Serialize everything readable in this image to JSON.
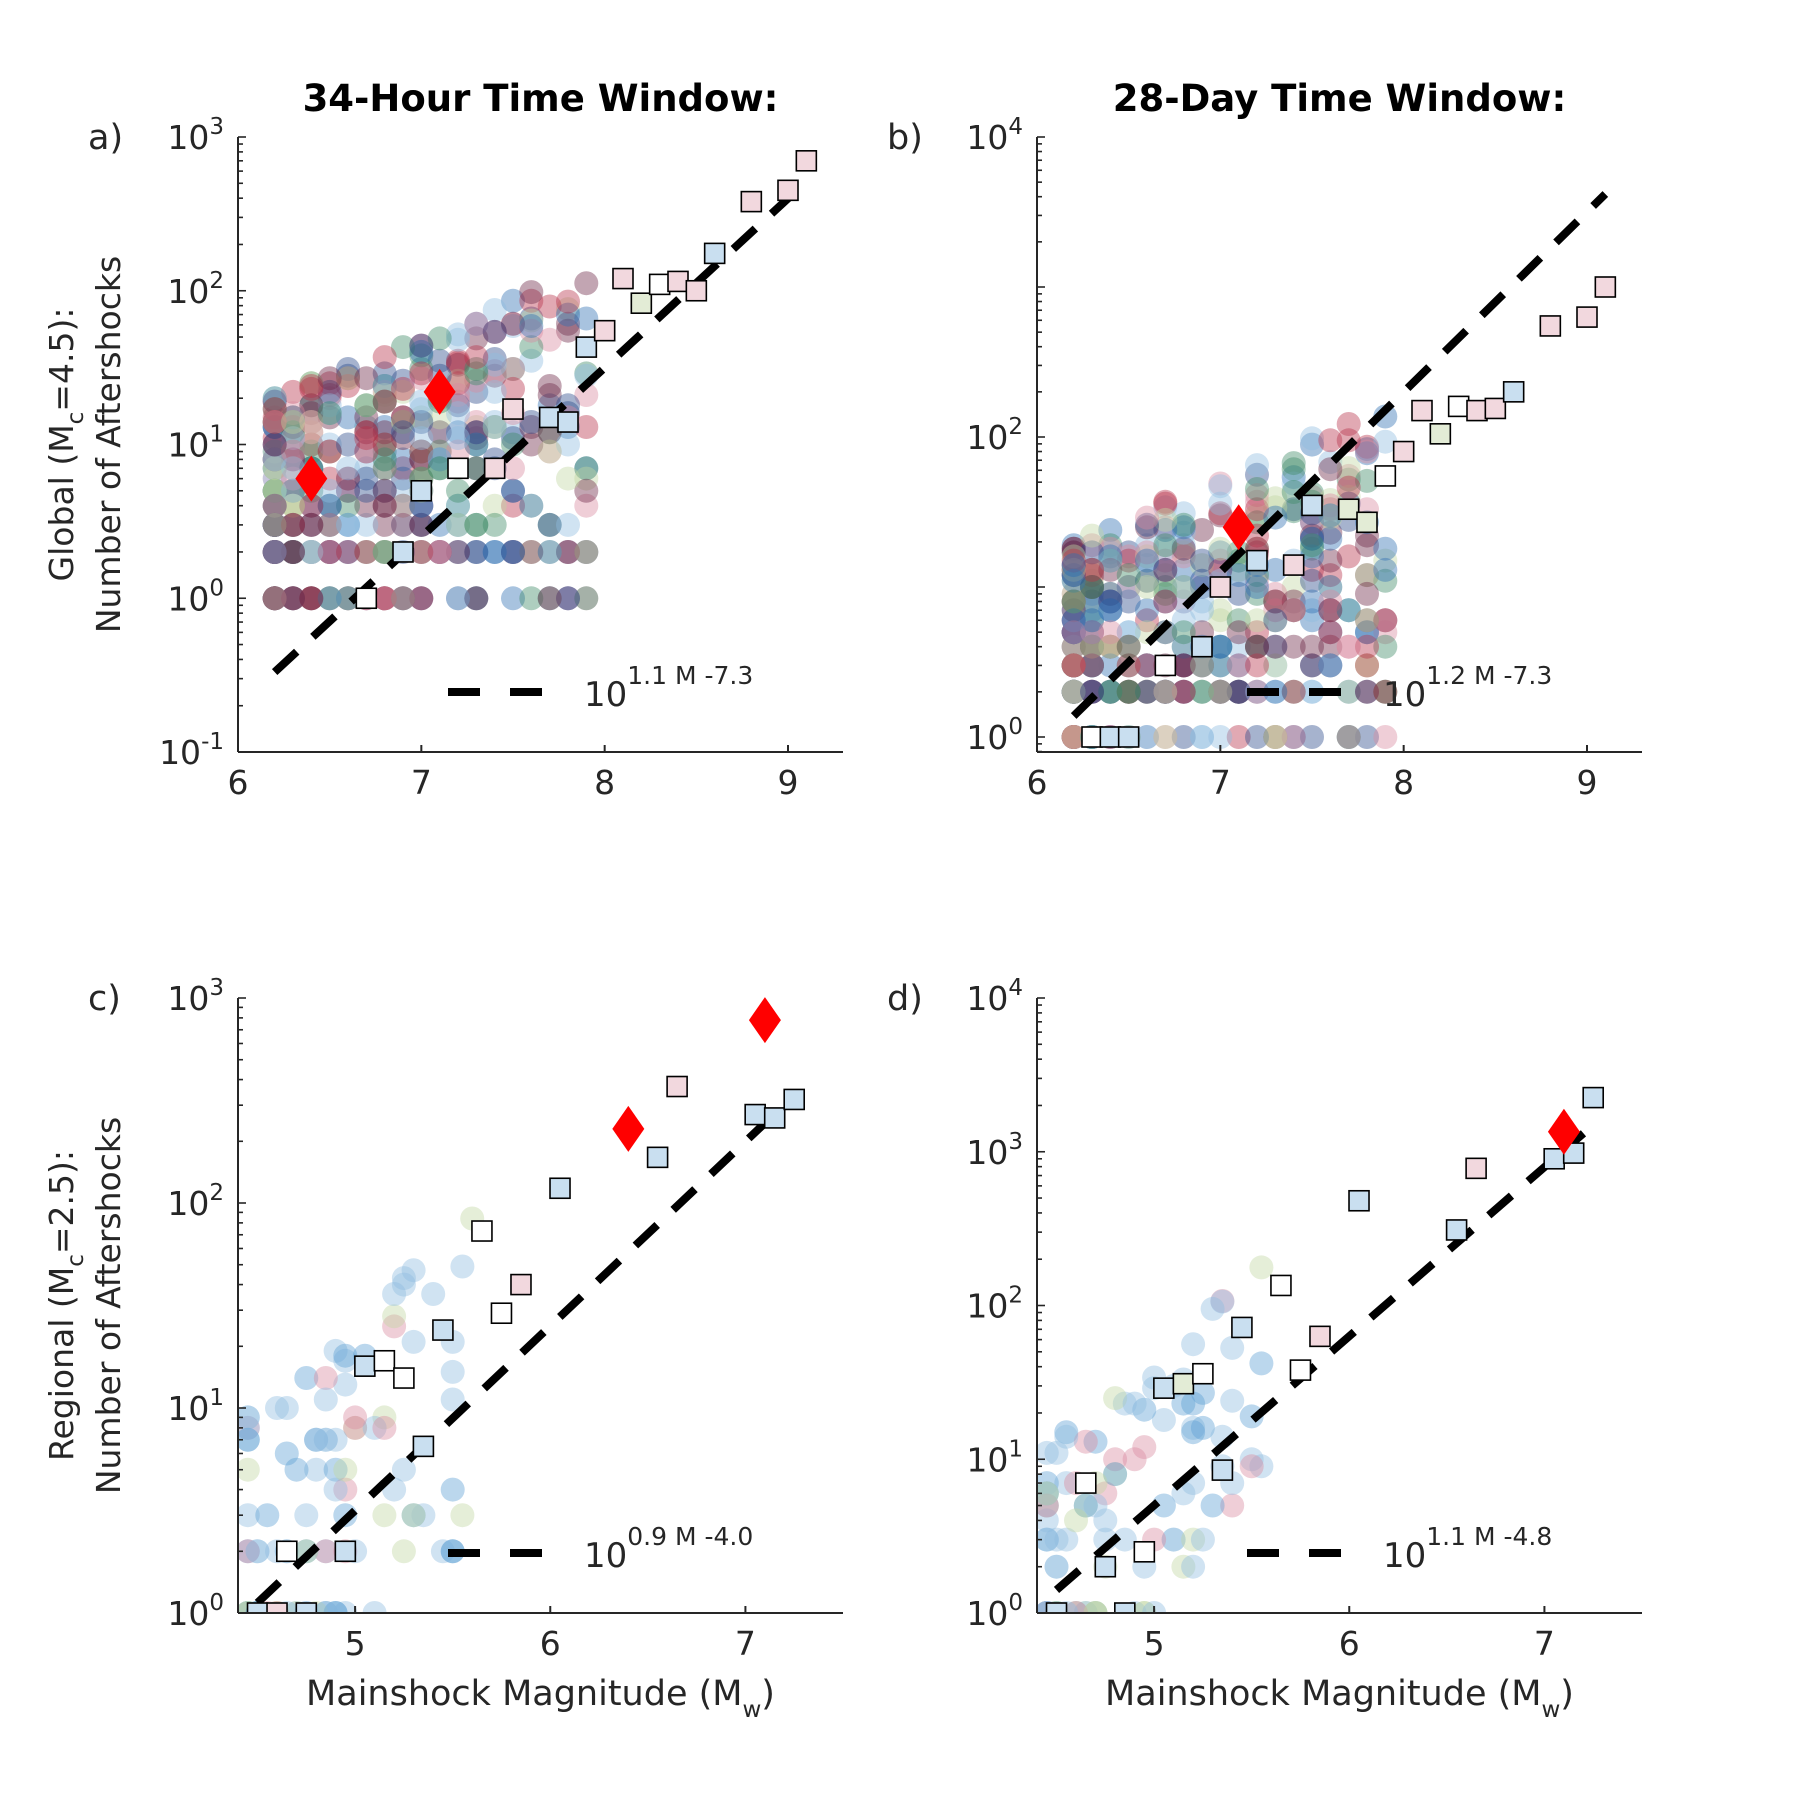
{
  "chart_data": [
    {
      "id": "a",
      "type": "scatter",
      "panel_label": "a)",
      "title": "34-Hour Time Window:",
      "ylabel_line1": "Global (M",
      "ylabel_sub": "c",
      "ylabel_rest": "=4.5):",
      "ylabel_line2": "Number of Aftershocks",
      "xlabel": "",
      "xlim": [
        6,
        9.3
      ],
      "ylim_exp": [
        -1,
        3
      ],
      "y_scale": "log",
      "xticks": [
        6,
        7,
        8,
        9
      ],
      "yticks_exp": [
        -1,
        0,
        1,
        2,
        3
      ],
      "fit": {
        "slope": 1.1,
        "intercept": -7.3,
        "x_range": [
          6.2,
          9.1
        ]
      },
      "legend": {
        "base": "10",
        "exponent": "1.1 M -7.3",
        "position": "lower-right"
      },
      "mainshocks_red": [
        [
          6.4,
          6
        ],
        [
          7.1,
          22
        ]
      ],
      "squares": [
        [
          6.7,
          1,
          "#ffffff"
        ],
        [
          6.9,
          2,
          "#c9dff0"
        ],
        [
          7.0,
          5,
          "#c9dff0"
        ],
        [
          7.2,
          7,
          "#ffffff"
        ],
        [
          7.4,
          7,
          "#f2d8de"
        ],
        [
          7.5,
          17,
          "#f2d8de"
        ],
        [
          7.7,
          15,
          "#c9dff0"
        ],
        [
          7.8,
          14,
          "#c9dff0"
        ],
        [
          7.9,
          43,
          "#c9dff0"
        ],
        [
          8.0,
          55,
          "#f2d8de"
        ],
        [
          8.1,
          120,
          "#f2d8de"
        ],
        [
          8.2,
          83,
          "#e3ecd6"
        ],
        [
          8.3,
          110,
          "#ffffff"
        ],
        [
          8.4,
          115,
          "#f2d8de"
        ],
        [
          8.5,
          100,
          "#f2d8de"
        ],
        [
          8.6,
          175,
          "#c9dff0"
        ],
        [
          8.8,
          380,
          "#f2d8de"
        ],
        [
          9.0,
          450,
          "#f2d8de"
        ],
        [
          9.1,
          700,
          "#f2d8de"
        ]
      ]
    },
    {
      "id": "b",
      "type": "scatter",
      "panel_label": "b)",
      "title": "28-Day Time Window:",
      "ylabel_line1": "",
      "ylabel_sub": "",
      "ylabel_rest": "",
      "ylabel_line2": "",
      "xlabel": "",
      "xlim": [
        6,
        9.3
      ],
      "ylim_exp": [
        -0.1,
        4
      ],
      "y_scale": "log",
      "xticks": [
        6,
        7,
        8,
        9
      ],
      "yticks_exp": [
        0,
        2,
        4
      ],
      "fit": {
        "slope": 1.2,
        "intercept": -7.3,
        "x_range": [
          6.2,
          9.1
        ]
      },
      "legend": {
        "base": "10",
        "exponent": "1.2 M -7.3",
        "position": "lower-right"
      },
      "mainshocks_red": [
        [
          7.1,
          25
        ]
      ],
      "squares": [
        [
          6.3,
          1,
          "#ffffff"
        ],
        [
          6.4,
          1,
          "#c9dff0"
        ],
        [
          6.5,
          1,
          "#c9dff0"
        ],
        [
          6.7,
          3,
          "#ffffff"
        ],
        [
          6.9,
          4,
          "#c9dff0"
        ],
        [
          7.0,
          10,
          "#f2d8de"
        ],
        [
          7.2,
          15,
          "#c9dff0"
        ],
        [
          7.4,
          14,
          "#f2d8de"
        ],
        [
          7.5,
          35,
          "#c9dff0"
        ],
        [
          7.7,
          33,
          "#e3ecd6"
        ],
        [
          7.8,
          27,
          "#e3ecd6"
        ],
        [
          7.9,
          55,
          "#ffffff"
        ],
        [
          8.0,
          80,
          "#f2d8de"
        ],
        [
          8.1,
          150,
          "#f2d8de"
        ],
        [
          8.2,
          105,
          "#e3ecd6"
        ],
        [
          8.3,
          160,
          "#ffffff"
        ],
        [
          8.4,
          150,
          "#f2d8de"
        ],
        [
          8.5,
          155,
          "#f2d8de"
        ],
        [
          8.6,
          200,
          "#c9dff0"
        ],
        [
          8.8,
          550,
          "#f2d8de"
        ],
        [
          9.0,
          630,
          "#f2d8de"
        ],
        [
          9.1,
          1000,
          "#f2d8de"
        ]
      ]
    },
    {
      "id": "c",
      "type": "scatter",
      "panel_label": "c)",
      "title": "",
      "ylabel_line1": "Regional (M",
      "ylabel_sub": "c",
      "ylabel_rest": "=2.5):",
      "ylabel_line2": "Number of Aftershocks",
      "xlabel": "Mainshock Magnitude (M",
      "xlabel_sub": "w",
      "xlabel_end": ")",
      "xlim": [
        4.4,
        7.5
      ],
      "ylim_exp": [
        0,
        3
      ],
      "y_scale": "log",
      "xticks": [
        5,
        6,
        7
      ],
      "yticks_exp": [
        0,
        1,
        2,
        3
      ],
      "fit": {
        "slope": 0.9,
        "intercept": -4.0,
        "x_range": [
          4.5,
          7.2
        ]
      },
      "legend": {
        "base": "10",
        "exponent": "0.9 M -4.0",
        "position": "lower-right"
      },
      "mainshocks_red": [
        [
          6.4,
          230
        ],
        [
          7.1,
          780
        ]
      ],
      "squares": [
        [
          4.5,
          1,
          "#c9dff0"
        ],
        [
          4.6,
          1,
          "#f2d8de"
        ],
        [
          4.65,
          2,
          "#ffffff"
        ],
        [
          4.75,
          1,
          "#c9dff0"
        ],
        [
          4.95,
          2,
          "#c9dff0"
        ],
        [
          5.05,
          16,
          "#c9dff0"
        ],
        [
          5.15,
          17,
          "#ffffff"
        ],
        [
          5.25,
          14,
          "#ffffff"
        ],
        [
          5.35,
          6.5,
          "#c9dff0"
        ],
        [
          5.45,
          24,
          "#c9dff0"
        ],
        [
          5.65,
          73,
          "#ffffff"
        ],
        [
          5.75,
          29,
          "#ffffff"
        ],
        [
          5.85,
          40,
          "#f2d8de"
        ],
        [
          6.05,
          118,
          "#c9dff0"
        ],
        [
          6.55,
          167,
          "#c9dff0"
        ],
        [
          6.65,
          370,
          "#f2d8de"
        ],
        [
          7.05,
          270,
          "#c9dff0"
        ],
        [
          7.15,
          260,
          "#c9dff0"
        ],
        [
          7.25,
          320,
          "#c9dff0"
        ]
      ]
    },
    {
      "id": "d",
      "type": "scatter",
      "panel_label": "d)",
      "title": "",
      "ylabel_line1": "",
      "ylabel_sub": "",
      "ylabel_rest": "",
      "ylabel_line2": "",
      "xlabel": "Mainshock Magnitude (M",
      "xlabel_sub": "w",
      "xlabel_end": ")",
      "xlim": [
        4.4,
        7.5
      ],
      "ylim_exp": [
        0,
        4
      ],
      "y_scale": "log",
      "xticks": [
        5,
        6,
        7
      ],
      "yticks_exp": [
        0,
        1,
        2,
        3,
        4
      ],
      "fit": {
        "slope": 1.1,
        "intercept": -4.8,
        "x_range": [
          4.5,
          7.2
        ]
      },
      "legend": {
        "base": "10",
        "exponent": "1.1 M -4.8",
        "position": "lower-right"
      },
      "mainshocks_red": [
        [
          7.1,
          1350
        ]
      ],
      "squares": [
        [
          4.5,
          1,
          "#c9dff0"
        ],
        [
          4.65,
          7,
          "#ffffff"
        ],
        [
          4.75,
          2,
          "#c9dff0"
        ],
        [
          4.85,
          1,
          "#c9dff0"
        ],
        [
          4.95,
          2.5,
          "#ffffff"
        ],
        [
          5.05,
          29,
          "#c9dff0"
        ],
        [
          5.15,
          31,
          "#e3ecd6"
        ],
        [
          5.25,
          36,
          "#ffffff"
        ],
        [
          5.35,
          8.5,
          "#c9dff0"
        ],
        [
          5.45,
          72,
          "#c9dff0"
        ],
        [
          5.65,
          135,
          "#ffffff"
        ],
        [
          5.75,
          38,
          "#ffffff"
        ],
        [
          5.85,
          63,
          "#f2d8de"
        ],
        [
          6.05,
          480,
          "#c9dff0"
        ],
        [
          6.55,
          310,
          "#c9dff0"
        ],
        [
          6.65,
          780,
          "#f2d8de"
        ],
        [
          7.05,
          900,
          "#c9dff0"
        ],
        [
          7.15,
          980,
          "#c9dff0"
        ],
        [
          7.25,
          2250,
          "#c9dff0"
        ]
      ]
    }
  ],
  "colors": {
    "fit_line": "#000000",
    "mainshock_marker": "#ff0000",
    "axis": "#262626",
    "circle_palette": [
      "#8fbde0",
      "#d88aa0",
      "#c0d6a3",
      "#b73149",
      "#2f6fb3",
      "#6e2848",
      "#3f8a66",
      "#2b4a8a"
    ],
    "circle_palette_regional": [
      "#8fbde0",
      "#8fbde0",
      "#8fbde0",
      "#8fbde0",
      "#8fbde0",
      "#5d9fd3",
      "#d88aa0",
      "#c0d6a3"
    ]
  }
}
